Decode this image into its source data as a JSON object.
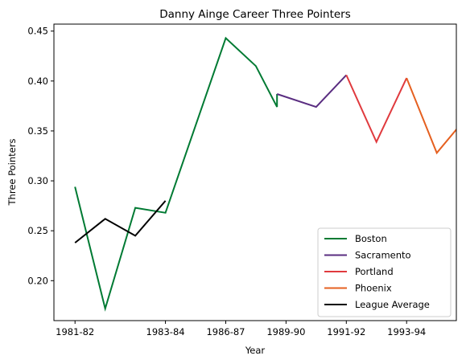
{
  "chart_data": {
    "type": "line",
    "title": "Danny Ainge Career Three Pointers",
    "xlabel": "Year",
    "ylabel": "Three Pointers",
    "x_ticks": [
      {
        "x": 0,
        "label": "1981-82"
      },
      {
        "x": 3,
        "label": "1983-84"
      },
      {
        "x": 5,
        "label": "1986-87"
      },
      {
        "x": 7,
        "label": "1989-90"
      },
      {
        "x": 9,
        "label": "1991-92"
      },
      {
        "x": 11,
        "label": "1993-94"
      }
    ],
    "y_ticks": [
      0.2,
      0.25,
      0.3,
      0.35,
      0.4,
      0.45
    ],
    "xlim": [
      -0.7,
      12.65
    ],
    "ylim": [
      0.16,
      0.457
    ],
    "grid": false,
    "legend_position": "lower right",
    "series": [
      {
        "name": "Boston",
        "color": "#007A33",
        "points": [
          [
            0,
            0.294
          ],
          [
            1,
            0.172
          ],
          [
            2,
            0.273
          ],
          [
            3,
            0.268
          ],
          [
            5,
            0.443
          ],
          [
            6,
            0.415
          ],
          [
            6.7,
            0.374
          ],
          [
            6.7,
            0.387
          ]
        ]
      },
      {
        "name": "Sacramento",
        "color": "#5A2D81",
        "points": [
          [
            6.7,
            0.387
          ],
          [
            8,
            0.374
          ],
          [
            9,
            0.406
          ]
        ]
      },
      {
        "name": "Portland",
        "color": "#E03A3E",
        "points": [
          [
            9,
            0.406
          ],
          [
            10,
            0.339
          ],
          [
            11,
            0.403
          ]
        ]
      },
      {
        "name": "Phoenix",
        "color": "#E56020",
        "points": [
          [
            11,
            0.403
          ],
          [
            12,
            0.328
          ],
          [
            13,
            0.364
          ]
        ]
      },
      {
        "name": "League Average",
        "color": "#000000",
        "points": [
          [
            0,
            0.238
          ],
          [
            1,
            0.262
          ],
          [
            2,
            0.245
          ],
          [
            3,
            0.28
          ]
        ]
      }
    ]
  }
}
